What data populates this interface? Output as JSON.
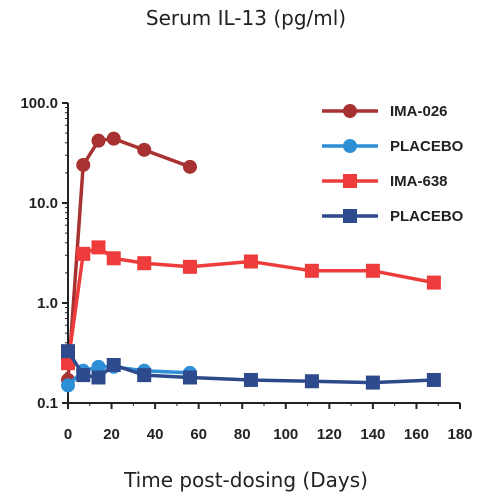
{
  "chart_data": {
    "type": "line",
    "title": "Serum IL-13 (pg/ml)",
    "xlabel": "Time post-dosing (Days)",
    "ylabel": "",
    "y_scale": "log",
    "xlim": [
      0,
      180
    ],
    "ylim": [
      0.1,
      100
    ],
    "x_ticks": [
      0,
      20,
      40,
      60,
      80,
      100,
      120,
      140,
      160,
      180
    ],
    "y_ticks": [
      {
        "value": 0.1,
        "label": "0.1"
      },
      {
        "value": 1,
        "label": "1.0"
      },
      {
        "value": 10,
        "label": "10.0"
      },
      {
        "value": 100,
        "label": "100.0"
      }
    ],
    "legend_position": "top-right",
    "grid": false,
    "series": [
      {
        "name": "IMA-026",
        "color": "#a83232",
        "marker": "circle",
        "x": [
          0,
          7,
          14,
          21,
          35,
          56
        ],
        "y": [
          0.17,
          24,
          42,
          44,
          34,
          23
        ]
      },
      {
        "name": "PLACEBO",
        "color": "#2f8fd6",
        "marker": "circle",
        "x": [
          0,
          7,
          14,
          21,
          35,
          56
        ],
        "y": [
          0.15,
          0.21,
          0.23,
          0.23,
          0.21,
          0.2
        ]
      },
      {
        "name": "IMA-638",
        "color": "#ee3b3b",
        "marker": "square",
        "x": [
          0,
          7,
          14,
          21,
          35,
          56,
          84,
          112,
          140,
          168
        ],
        "y": [
          0.25,
          3.1,
          3.6,
          2.8,
          2.5,
          2.3,
          2.6,
          2.1,
          2.1,
          1.6
        ]
      },
      {
        "name": "PLACEBO",
        "color": "#2c4a8c",
        "marker": "square",
        "x": [
          0,
          7,
          14,
          21,
          35,
          56,
          84,
          112,
          140,
          168
        ],
        "y": [
          0.33,
          0.19,
          0.18,
          0.24,
          0.19,
          0.18,
          0.17,
          0.165,
          0.16,
          0.17
        ]
      }
    ]
  }
}
